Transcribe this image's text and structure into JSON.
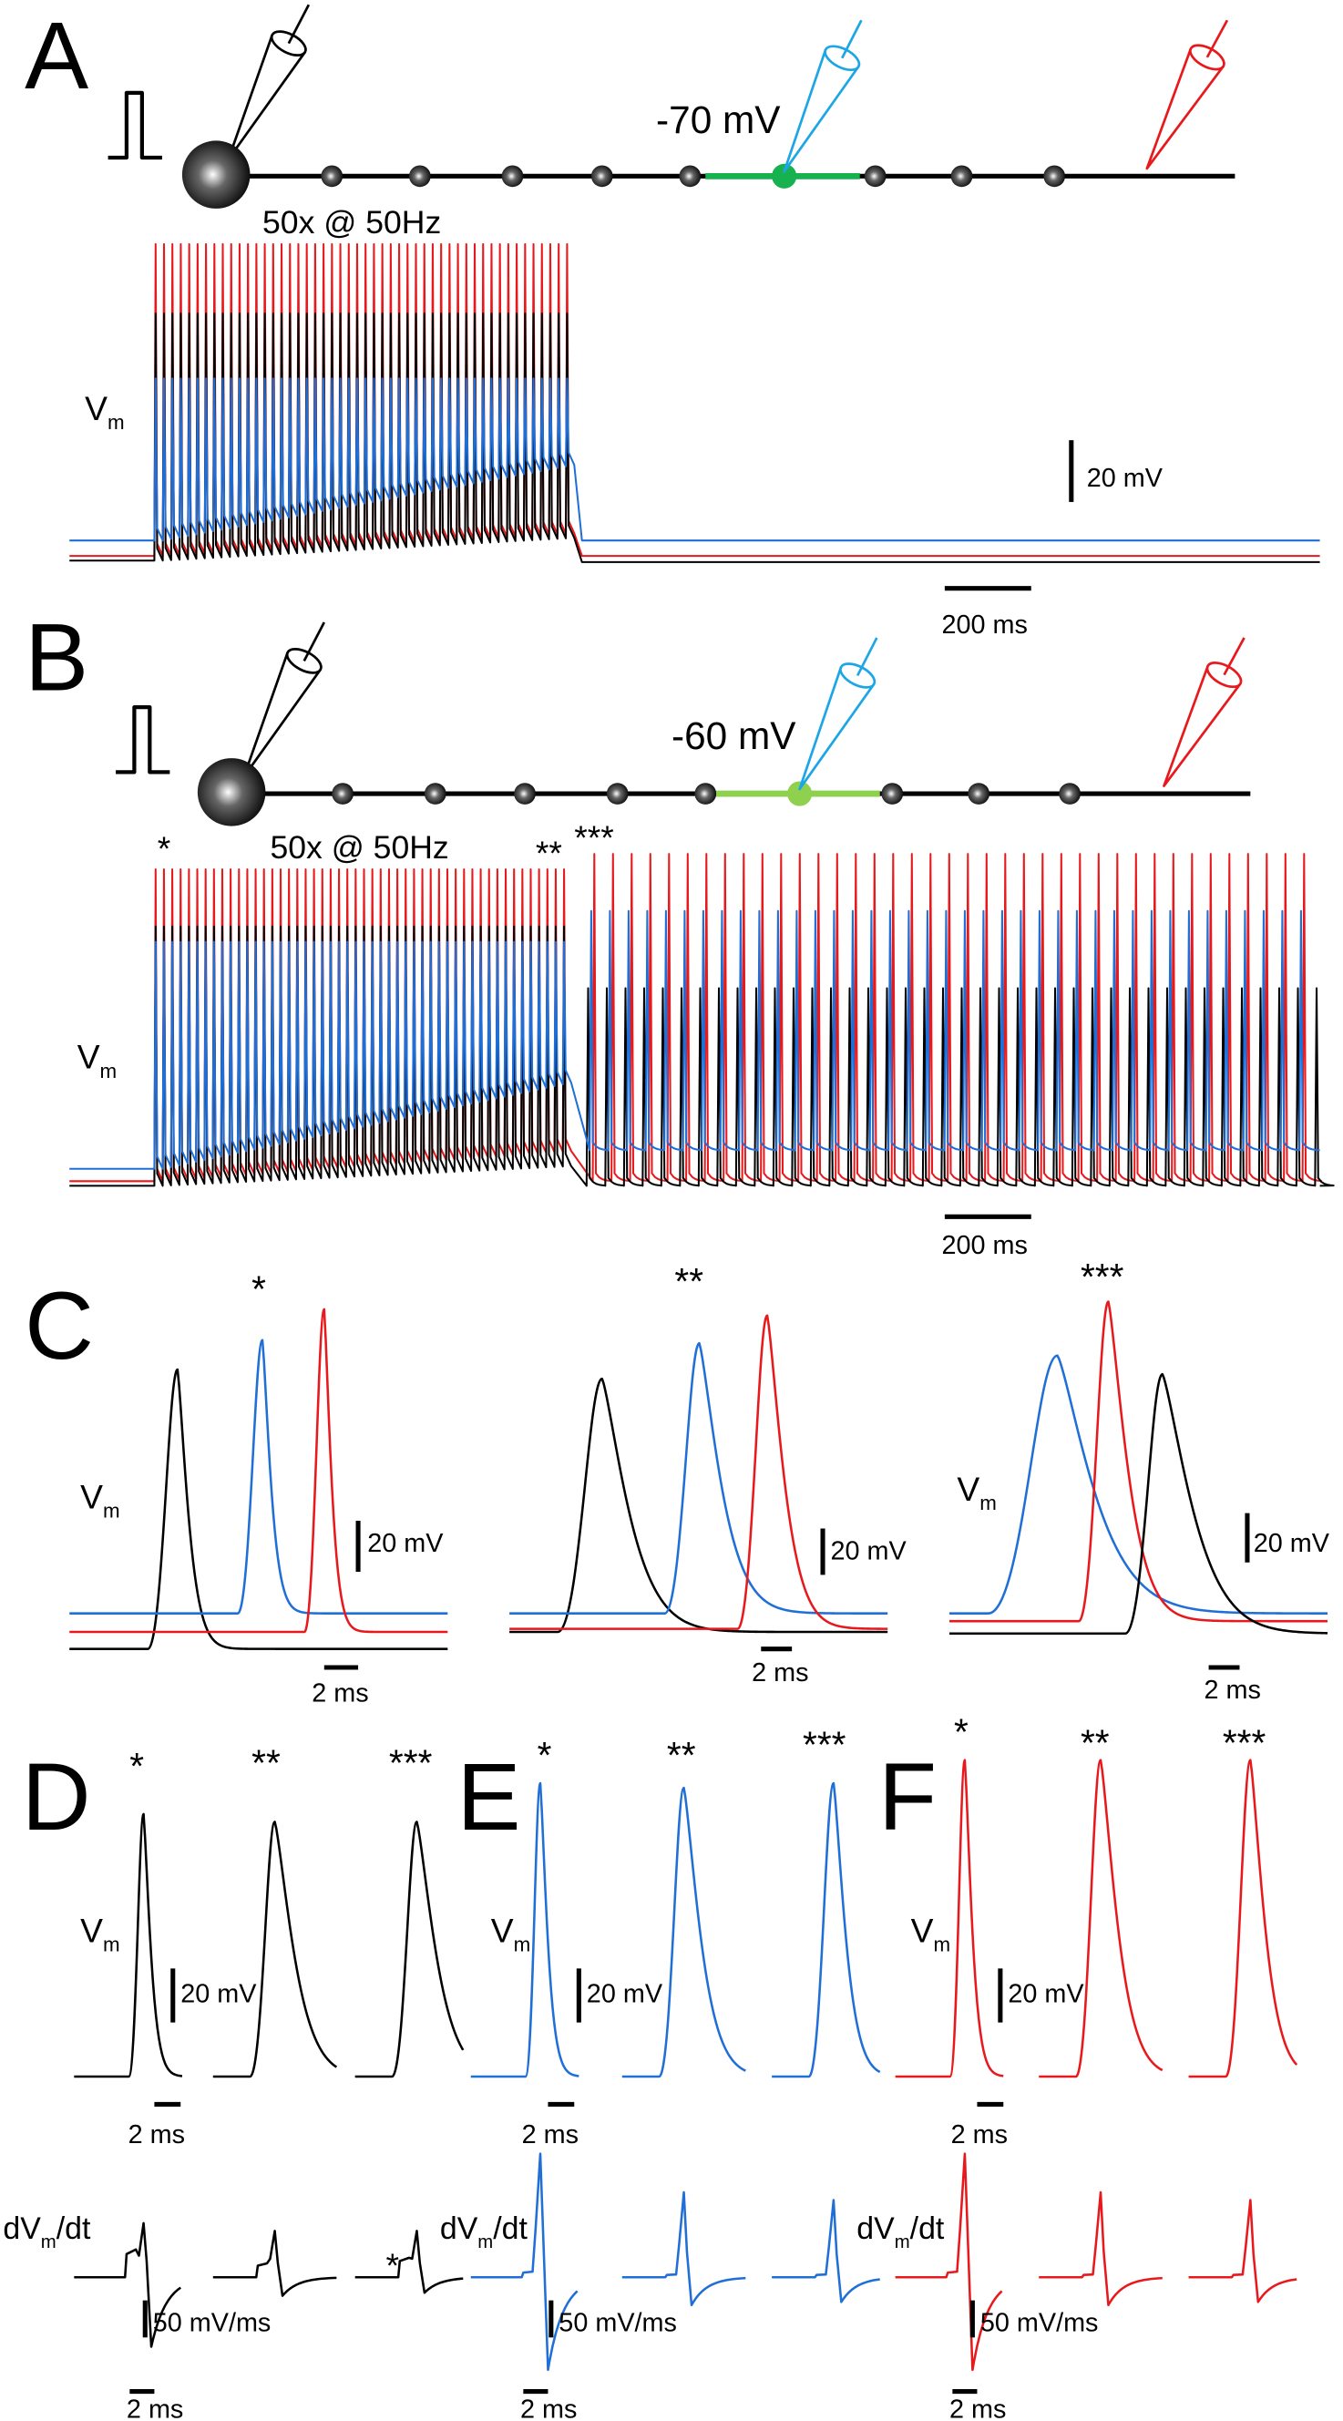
{
  "panel_labels": [
    "A",
    "B",
    "C",
    "D",
    "E",
    "F"
  ],
  "holding_potentials": [
    "-70 mV",
    "-60 mV"
  ],
  "stimulus": "50x @ 50Hz",
  "vm_label": {
    "main": "V",
    "sub": "m"
  },
  "dvdt_label": {
    "main": "dV",
    "sub": "m",
    "tail": "/dt"
  },
  "scale_bars": {
    "voltage": "20 mV",
    "long_time": "200 ms",
    "short_time": "2 ms",
    "derivative": "50 mV/ms"
  },
  "markers": [
    "*",
    "**",
    "***"
  ]
}
